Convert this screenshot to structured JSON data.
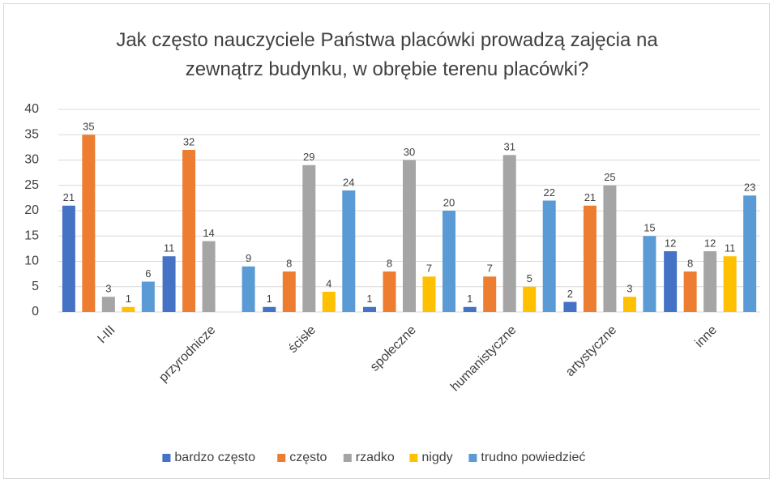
{
  "chart_data": {
    "type": "bar",
    "title": "Jak często nauczyciele Państwa placówki prowadzą zajęcia na zewnątrz budynku, w obrębie terenu placówki?",
    "categories": [
      "I-III",
      "przyrodnicze",
      "ścisłe",
      "społeczne",
      "humanistyczne",
      "artystyczne",
      "inne"
    ],
    "series": [
      {
        "name": "bardzo często",
        "color": "#4472c4",
        "values": [
          21,
          11,
          1,
          1,
          1,
          2,
          12
        ]
      },
      {
        "name": "często",
        "color": "#ed7d31",
        "values": [
          35,
          32,
          8,
          8,
          7,
          21,
          8
        ]
      },
      {
        "name": "rzadko",
        "color": "#a5a5a5",
        "values": [
          3,
          14,
          29,
          30,
          31,
          25,
          12
        ]
      },
      {
        "name": "nigdy",
        "color": "#ffc000",
        "values": [
          1,
          null,
          4,
          7,
          5,
          3,
          11
        ]
      },
      {
        "name": "trudno powiedzieć",
        "color": "#5b9bd5",
        "values": [
          6,
          9,
          24,
          20,
          22,
          15,
          23
        ]
      }
    ],
    "ylim": [
      0,
      40
    ],
    "yticks": [
      0,
      5,
      10,
      15,
      20,
      25,
      30,
      35,
      40
    ],
    "grid": true,
    "legend": "bottom"
  }
}
